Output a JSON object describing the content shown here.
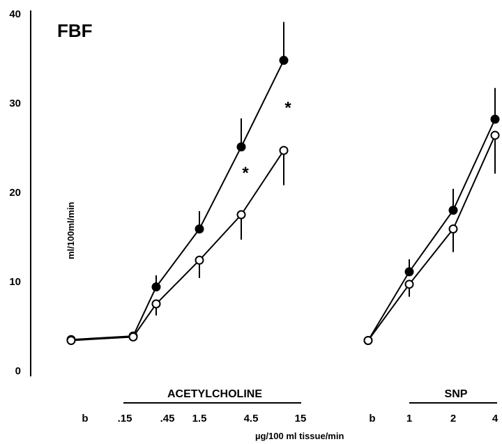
{
  "chart_data": {
    "type": "line",
    "title": "FBF",
    "ylabel": "ml/100ml/min",
    "xlabel": "µg/100 ml tissue/min",
    "ylim": [
      0,
      40
    ],
    "yticks": [
      "0",
      "10",
      "20",
      "30",
      "40"
    ],
    "grid": false,
    "panels": [
      {
        "name": "ACETYLCHOLINE",
        "categories": [
          "b",
          ".15",
          ".45",
          "1.5",
          "4.5",
          "15"
        ],
        "series": [
          {
            "marker": "filled-circle",
            "values": [
              3.5,
              3.9,
              9.4,
              15.9,
              25.1,
              34.8
            ],
            "errors": [
              0,
              0,
              1.3,
              2.0,
              3.2,
              4.3
            ]
          },
          {
            "marker": "open-circle",
            "values": [
              3.4,
              3.8,
              7.5,
              12.4,
              17.5,
              24.7
            ],
            "errors": [
              0,
              0,
              1.3,
              2.0,
              2.8,
              3.9
            ]
          }
        ],
        "annotations": [
          {
            "text": "*",
            "category": "4.5",
            "y": 22.5
          },
          {
            "text": "*",
            "category": "15",
            "y": 29.8
          }
        ]
      },
      {
        "name": "SNP",
        "categories": [
          "b",
          "1",
          "2",
          "4"
        ],
        "series": [
          {
            "marker": "filled-circle",
            "values": [
              3.4,
              11.1,
              18.0,
              28.2
            ],
            "errors": [
              0,
              1.4,
              2.4,
              3.5
            ]
          },
          {
            "marker": "open-circle",
            "values": [
              3.4,
              9.7,
              15.9,
              26.4
            ],
            "errors": [
              0,
              1.4,
              2.6,
              4.3
            ]
          }
        ]
      }
    ]
  }
}
